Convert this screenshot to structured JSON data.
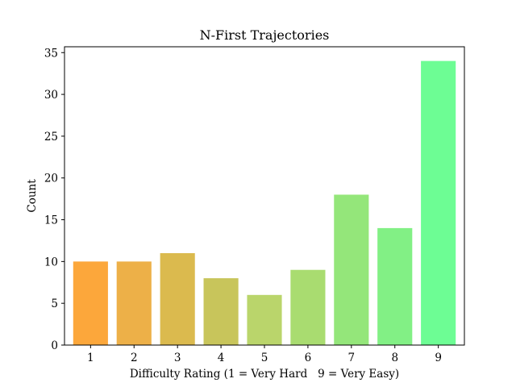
{
  "chart_data": {
    "type": "bar",
    "title": "N-First Trajectories",
    "xlabel": "Difficulty Rating (1 = Very Hard   9 = Very Easy)",
    "ylabel": "Count",
    "categories": [
      "1",
      "2",
      "3",
      "4",
      "5",
      "6",
      "7",
      "8",
      "9"
    ],
    "values": [
      10,
      10,
      11,
      8,
      6,
      9,
      18,
      14,
      34
    ],
    "colors": [
      "#fca73b",
      "#edb048",
      "#dbba4e",
      "#c8c55b",
      "#bad56b",
      "#a9dc70",
      "#94e67a",
      "#82f085",
      "#6dfd94"
    ],
    "ylim": [
      0,
      35.7
    ],
    "yticks": [
      0,
      5,
      10,
      15,
      20,
      25,
      30,
      35
    ],
    "grid": false
  }
}
